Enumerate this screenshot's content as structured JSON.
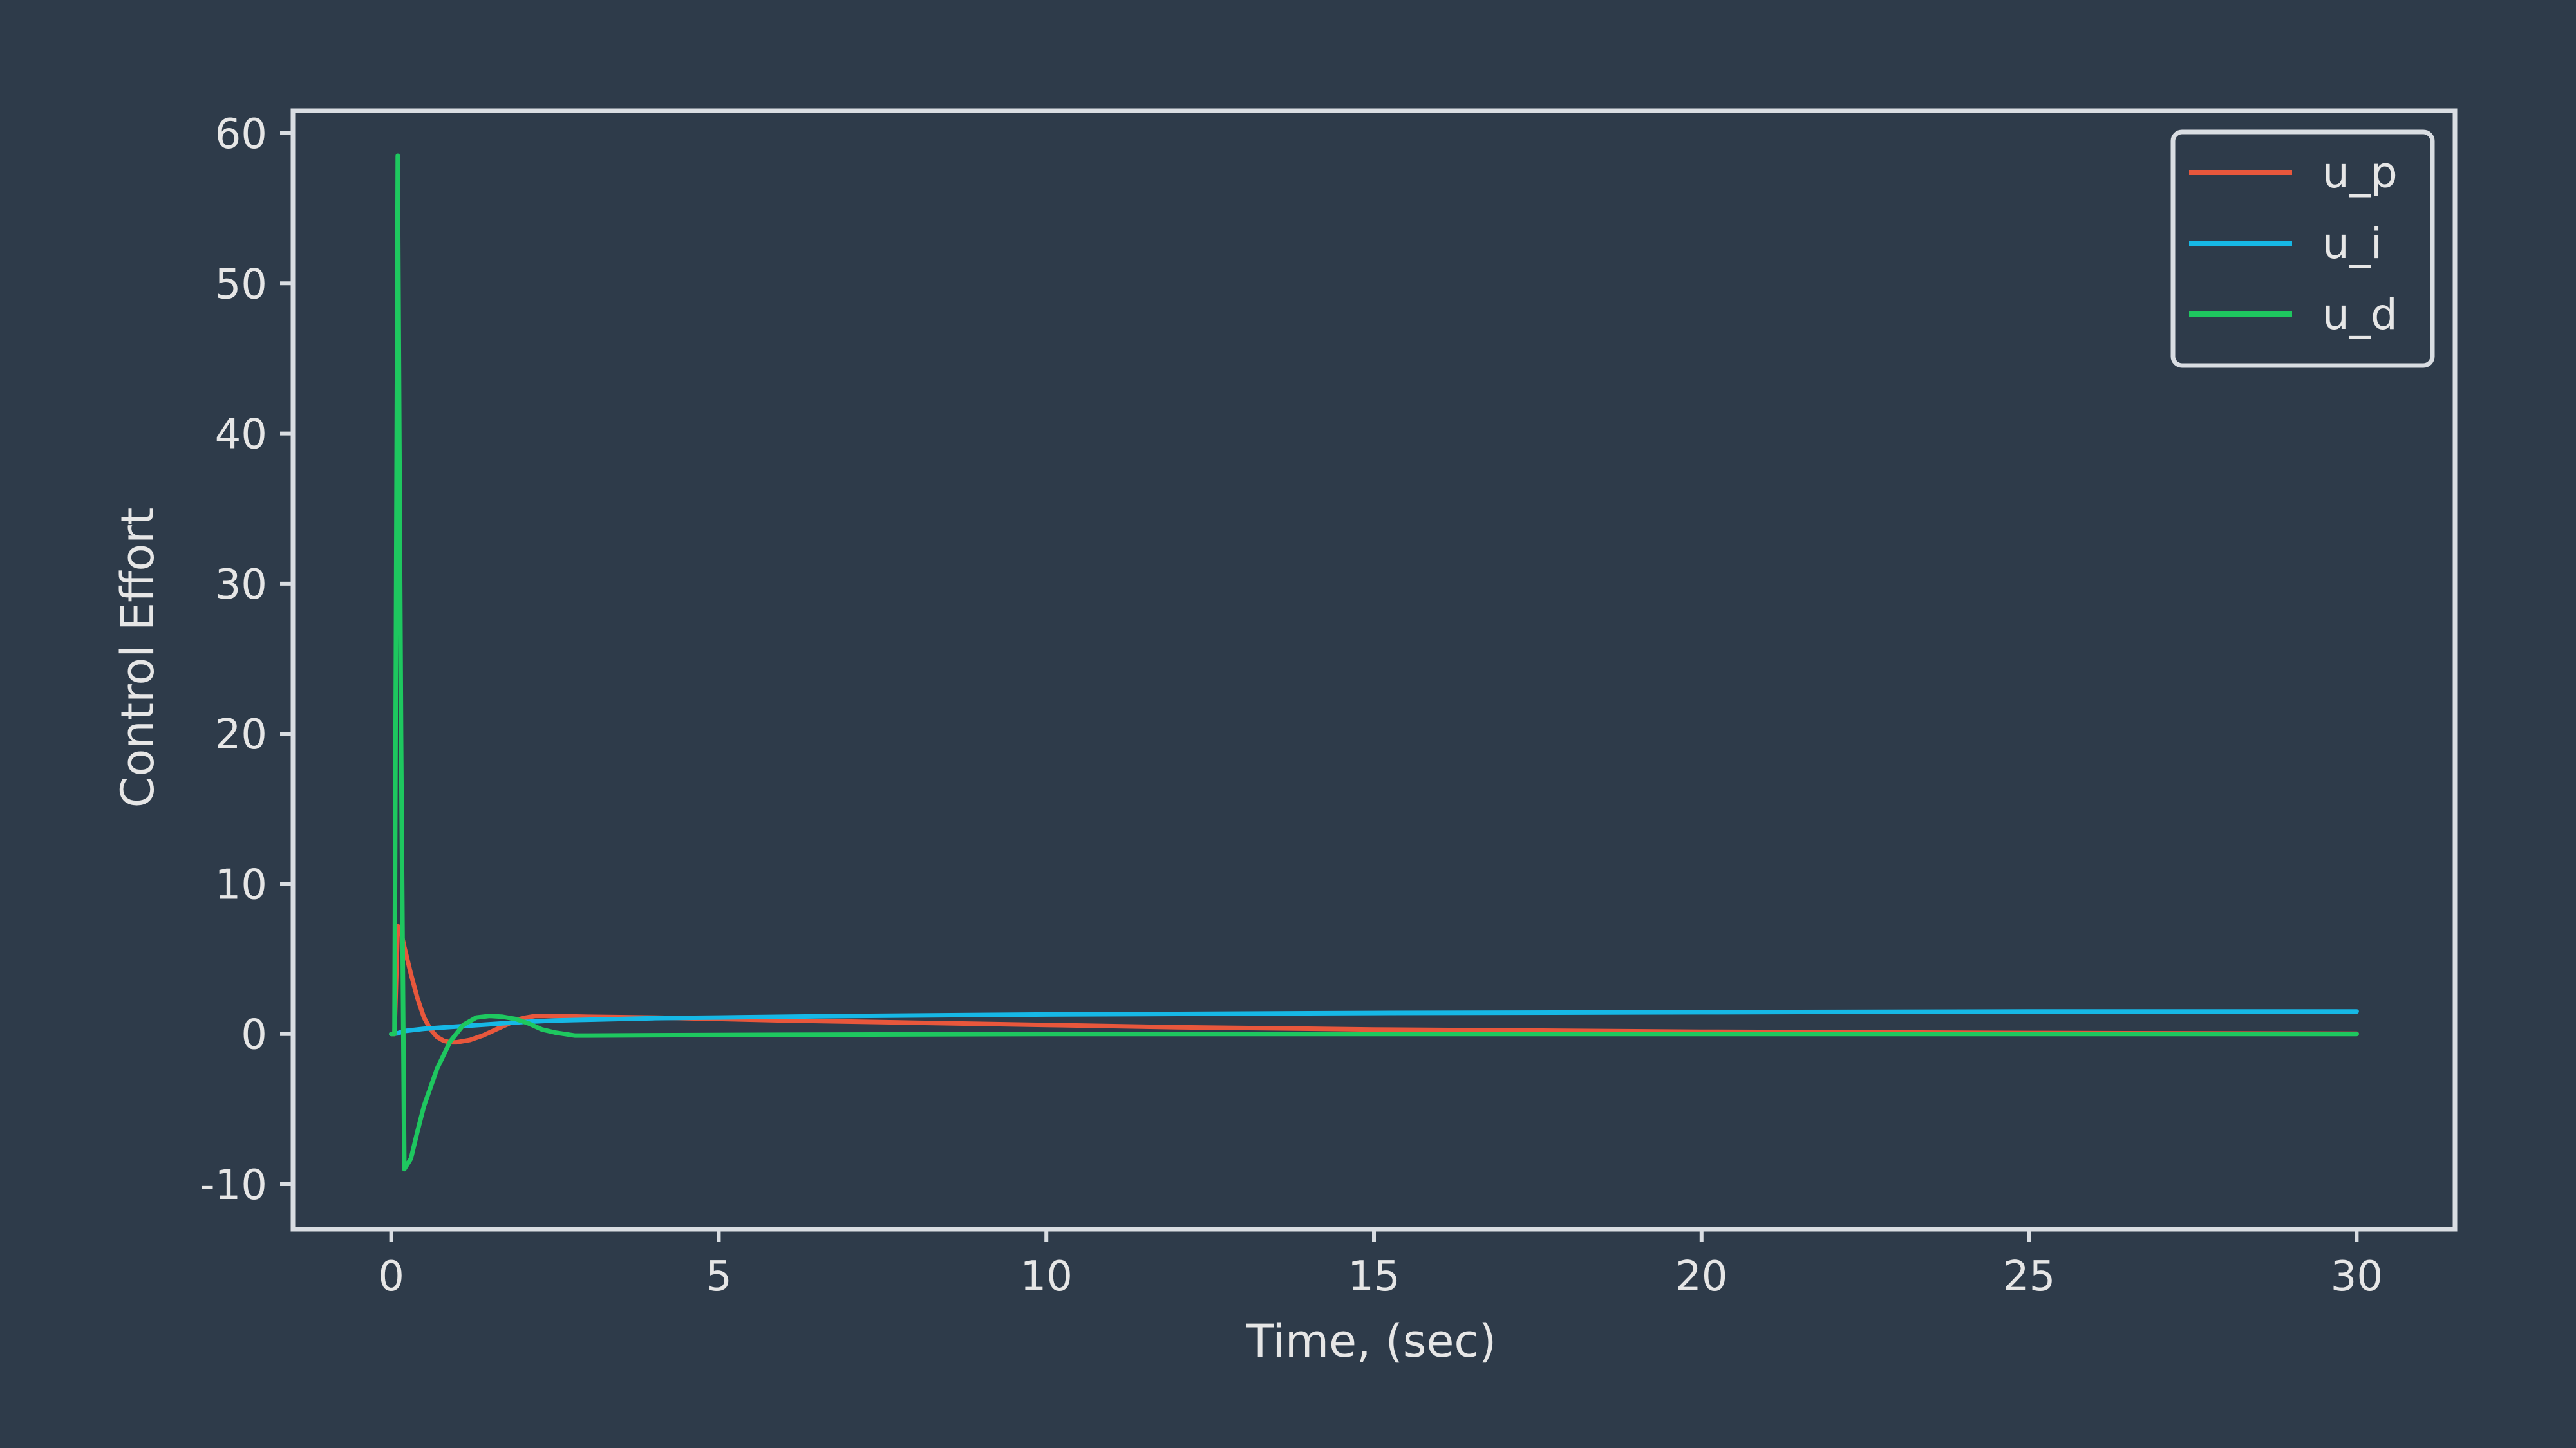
{
  "chart_data": {
    "type": "line",
    "title": "",
    "xlabel": "Time, (sec)",
    "ylabel": "Control Effort",
    "xlim": [
      -1.5,
      31.5
    ],
    "ylim": [
      -13,
      61.5
    ],
    "xticks": [
      0,
      5,
      10,
      15,
      20,
      25,
      30
    ],
    "yticks": [
      -10,
      0,
      10,
      20,
      30,
      40,
      50,
      60
    ],
    "grid": false,
    "legend_position": "top-right",
    "background": "#2e3b4a",
    "axes_color": "#d9dde2",
    "series": [
      {
        "name": "u_p",
        "color": "#e8573c",
        "x": [
          0,
          0.05,
          0.1,
          0.15,
          0.2,
          0.3,
          0.4,
          0.5,
          0.6,
          0.7,
          0.8,
          0.9,
          1.0,
          1.2,
          1.4,
          1.6,
          1.8,
          2.0,
          2.2,
          2.5,
          3.0,
          4.0,
          5.0,
          6.0,
          8.0,
          10.0,
          12.0,
          15.0,
          20.0,
          25.0,
          30.0
        ],
        "y": [
          0,
          0,
          7.2,
          6.8,
          5.8,
          4.0,
          2.4,
          1.1,
          0.3,
          -0.2,
          -0.45,
          -0.55,
          -0.55,
          -0.4,
          -0.1,
          0.3,
          0.7,
          1.05,
          1.2,
          1.2,
          1.15,
          1.1,
          1.0,
          0.9,
          0.75,
          0.6,
          0.45,
          0.3,
          0.15,
          0.07,
          0.02
        ]
      },
      {
        "name": "u_i",
        "color": "#16b8e6",
        "x": [
          0,
          0.1,
          0.2,
          0.5,
          1.0,
          1.5,
          2.0,
          2.5,
          3.0,
          4.0,
          5.0,
          7.0,
          10.0,
          15.0,
          20.0,
          25.0,
          30.0
        ],
        "y": [
          0,
          0.05,
          0.2,
          0.35,
          0.5,
          0.65,
          0.8,
          0.9,
          0.95,
          1.05,
          1.1,
          1.2,
          1.3,
          1.4,
          1.45,
          1.5,
          1.5
        ]
      },
      {
        "name": "u_d",
        "color": "#1ec75f",
        "x": [
          0,
          0.05,
          0.1,
          0.15,
          0.2,
          0.3,
          0.4,
          0.5,
          0.7,
          0.9,
          1.1,
          1.3,
          1.5,
          1.7,
          1.9,
          2.1,
          2.3,
          2.5,
          2.8,
          3.0,
          4.0,
          6.0,
          10.0,
          15.0,
          20.0,
          25.0,
          30.0
        ],
        "y": [
          0,
          0,
          58.5,
          20.0,
          -9.0,
          -8.3,
          -6.5,
          -4.8,
          -2.3,
          -0.5,
          0.6,
          1.1,
          1.2,
          1.15,
          1.0,
          0.7,
          0.3,
          0.1,
          -0.1,
          -0.1,
          -0.08,
          -0.05,
          0,
          0,
          0,
          0,
          0
        ]
      }
    ]
  }
}
